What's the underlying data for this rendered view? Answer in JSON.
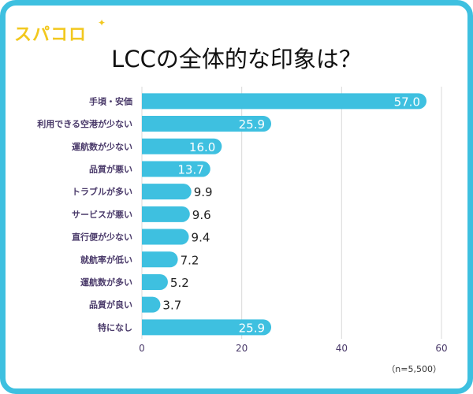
{
  "logo": {
    "text": "スパコロ",
    "spark": "✦"
  },
  "note": "（n=5,500）",
  "colors": {
    "bar": "#3ec0e0",
    "frame": "#3ec0e0",
    "label": "#4a3a6a",
    "value_inside": "#ffffff",
    "value_outside": "#222222",
    "grid": "#d9d9d9"
  },
  "chart_data": {
    "type": "bar",
    "orientation": "horizontal",
    "title": "LCCの全体的な印象は？",
    "categories": [
      "手頃・安価",
      "利用できる空港が少ない",
      "運航数が少ない",
      "品質が悪い",
      "トラブルが多い",
      "サービスが悪い",
      "直行便が少ない",
      "就航率が低い",
      "運航数が多い",
      "品質が良い",
      "特になし"
    ],
    "values": [
      57.0,
      25.9,
      16.0,
      13.7,
      9.9,
      9.6,
      9.4,
      7.2,
      5.2,
      3.7,
      25.9
    ],
    "value_labels": [
      "57.0",
      "25.9",
      "16.0",
      "13.7",
      "9.9",
      "9.6",
      "9.4",
      "7.2",
      "5.2",
      "3.7",
      "25.9"
    ],
    "xlim": [
      0,
      60
    ],
    "xticks": [
      0,
      20,
      40,
      60
    ],
    "xtick_labels": [
      "0",
      "20",
      "40",
      "60"
    ],
    "grid": true
  }
}
